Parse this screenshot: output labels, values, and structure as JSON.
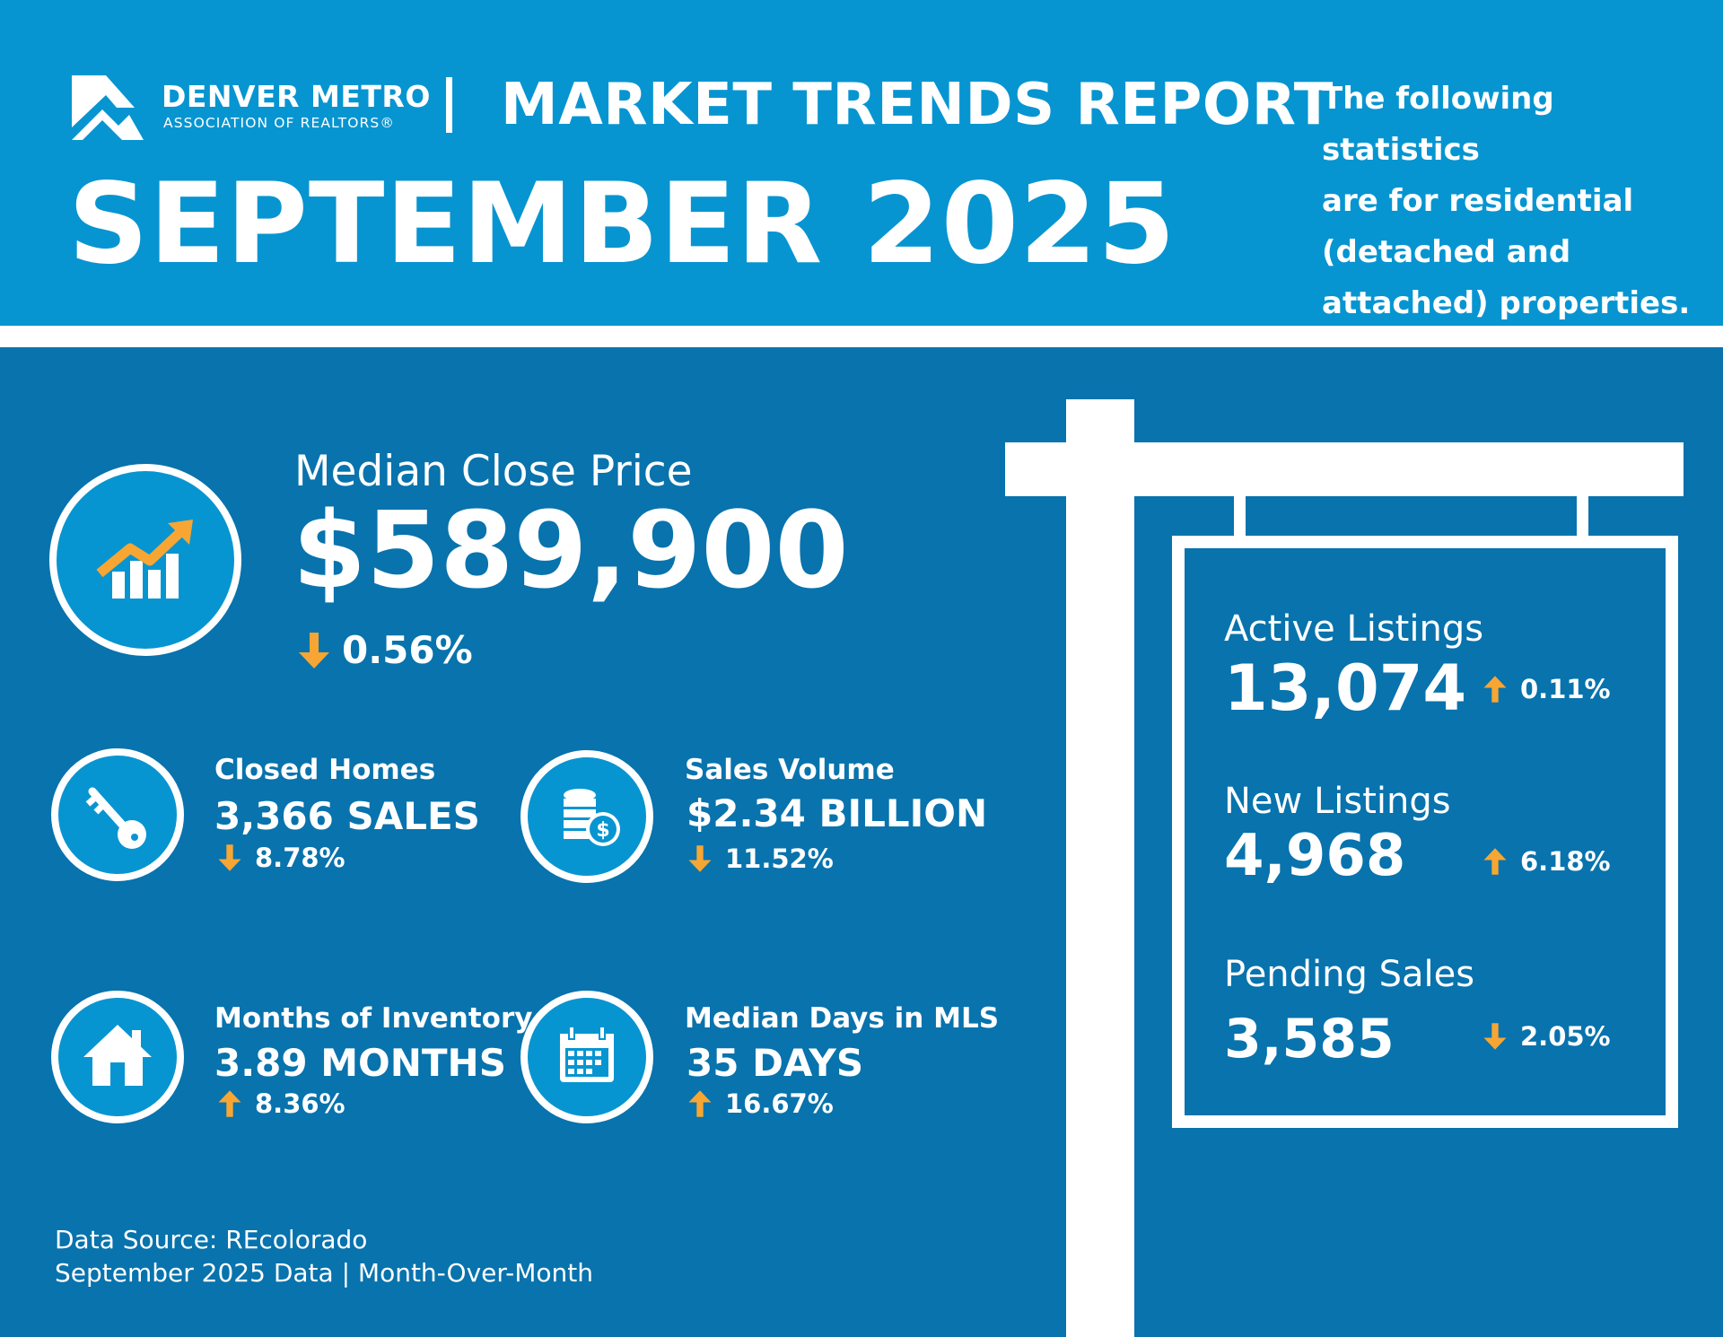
{
  "header": {
    "org_name": "DENVER METRO",
    "org_sub": "ASSOCIATION OF REALTORS®",
    "report_title": "MARKET TRENDS REPORT",
    "month_title": "SEPTEMBER 2025",
    "intro_lines": [
      "The following statistics",
      "are for residential",
      "(detached and",
      "attached) properties."
    ]
  },
  "median_close_price": {
    "label": "Median Close Price",
    "value": "$589,900",
    "change": "0.56%",
    "direction": "down",
    "icon": "chart-growth-icon"
  },
  "closed_homes": {
    "label": "Closed Homes",
    "value": "3,366 SALES",
    "change": "8.78%",
    "direction": "down",
    "icon": "key-icon"
  },
  "sales_volume": {
    "label": "Sales Volume",
    "value": "$2.34 BILLION",
    "change": "11.52%",
    "direction": "down",
    "icon": "coins-icon"
  },
  "months_inventory": {
    "label": "Months of Inventory",
    "value": "3.89 MONTHS",
    "change": "8.36%",
    "direction": "up",
    "icon": "house-icon"
  },
  "median_days": {
    "label": "Median Days in MLS",
    "value": "35 DAYS",
    "change": "16.67%",
    "direction": "up",
    "icon": "calendar-icon"
  },
  "sign": {
    "active": {
      "label": "Active Listings",
      "value": "13,074",
      "change": "0.11%",
      "direction": "up"
    },
    "new": {
      "label": "New Listings",
      "value": "4,968",
      "change": "6.18%",
      "direction": "up"
    },
    "pending": {
      "label": "Pending Sales",
      "value": "3,585",
      "change": "2.05%",
      "direction": "down"
    }
  },
  "footer": {
    "source": "Data Source: REcolorado",
    "period": "September 2025 Data | Month-Over-Month"
  },
  "colors": {
    "header_bg": "#0795d1",
    "main_bg": "#0873ad",
    "accent_orange": "#f7a633",
    "white": "#ffffff"
  }
}
